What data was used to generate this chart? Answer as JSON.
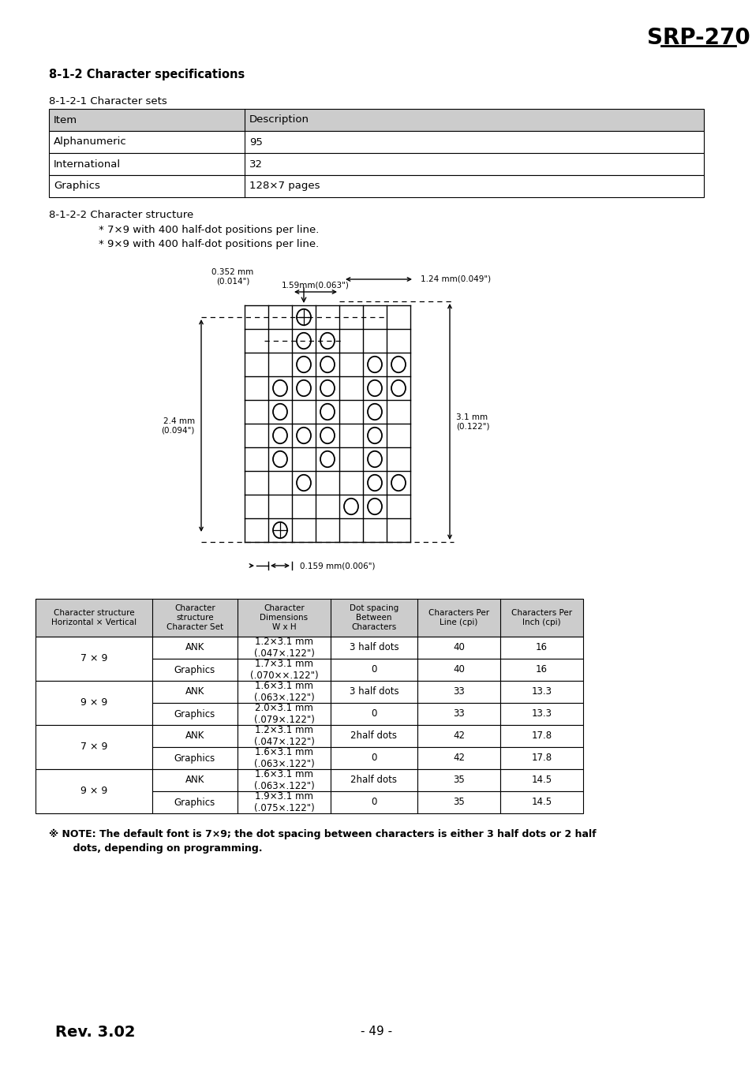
{
  "title": "SRP-270",
  "section_title": "8-1-2 Character specifications",
  "subsection1": "8-1-2-1 Character sets",
  "table1_headers": [
    "Item",
    "Description"
  ],
  "table1_rows": [
    [
      "Alphanumeric",
      "95"
    ],
    [
      "International",
      "32"
    ],
    [
      "Graphics",
      "128×7 pages"
    ]
  ],
  "subsection2": "8-1-2-2 Character structure",
  "bullet1": "* 7×9 with 400 half-dot positions per line.",
  "bullet2": "* 9×9 with 400 half-dot positions per line.",
  "table2_headers": [
    "Character structure\nHorizontal × Vertical",
    "Character\nstructure\nCharacter Set",
    "Character\nDimensions\nW x H",
    "Dot spacing\nBetween\nCharacters",
    "Characters Per\nLine (cpi)",
    "Characters Per\nInch (cpi)"
  ],
  "table2_rows": [
    [
      "7 × 9",
      "ANK",
      "1.2×3.1 mm\n(.047×.122\")",
      "3 half dots",
      "40",
      "16"
    ],
    [
      "7 × 9",
      "Graphics",
      "1.7×3.1 mm\n(.070××.122\")",
      "0",
      "40",
      "16"
    ],
    [
      "9 × 9",
      "ANK",
      "1.6×3.1 mm\n(.063×.122\")",
      "3 half dots",
      "33",
      "13.3"
    ],
    [
      "9 × 9",
      "Graphics",
      "2.0×3.1 mm\n(.079×.122\")",
      "0",
      "33",
      "13.3"
    ],
    [
      "7 × 9",
      "ANK",
      "1.2×3.1 mm\n(.047×.122\")",
      "2half dots",
      "42",
      "17.8"
    ],
    [
      "7 × 9",
      "Graphics",
      "1.6×3.1 mm\n(.063×.122\")",
      "0",
      "42",
      "17.8"
    ],
    [
      "9 × 9",
      "ANK",
      "1.6×3.1 mm\n(.063×.122\")",
      "2half dots",
      "35",
      "14.5"
    ],
    [
      "9 × 9",
      "Graphics",
      "1.9×3.1 mm\n(.075×.122\")",
      "0",
      "35",
      "14.5"
    ]
  ],
  "note_line1": "※ NOTE: The default font is 7×9; the dot spacing between characters is either 3 half dots or 2 half",
  "note_line2": "       dots, depending on programming.",
  "footer_left": "Rev. 3.02",
  "footer_mid": "- 49 -",
  "bg_color": "#ffffff",
  "header_bg": "#cccccc"
}
